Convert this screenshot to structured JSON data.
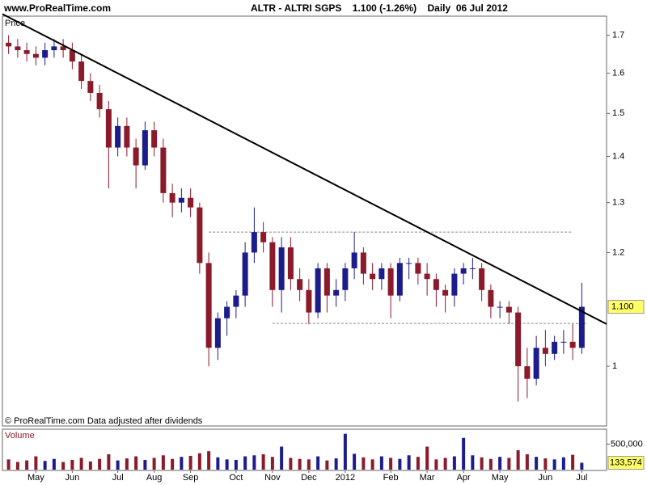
{
  "header": {
    "site": "www.ProRealTime.com",
    "instrument": "ALTR - ALTRI SGPS    1.100 (-1.26%)    Daily  06 Jul 2012"
  },
  "chart_data": {
    "type": "candlestick",
    "price_label": "Price",
    "footnote": "© ProRealTime.com  Data adjusted after dividends",
    "log_scale": true,
    "ylim": [
      0.911,
      1.753
    ],
    "yticks": [
      1,
      1.2,
      1.3,
      1.4,
      1.5,
      1.6,
      1.7
    ],
    "colors": {
      "up": "#1c1c8c",
      "down": "#8b1a2b",
      "trendline": "#000000",
      "level": "#888888"
    },
    "categories": [
      null,
      null,
      null,
      "May",
      null,
      null,
      null,
      "Jun",
      null,
      null,
      null,
      null,
      "Jul",
      null,
      null,
      null,
      "Aug",
      null,
      null,
      null,
      "Sep",
      null,
      null,
      null,
      null,
      "Oct",
      null,
      null,
      null,
      "Nov",
      null,
      null,
      null,
      "Dec",
      null,
      null,
      null,
      "2012",
      null,
      null,
      null,
      null,
      "Feb",
      null,
      null,
      null,
      "Mar",
      null,
      null,
      null,
      "Apr",
      null,
      null,
      null,
      "May",
      null,
      null,
      null,
      null,
      "Jun",
      null,
      null,
      null,
      "Jul"
    ],
    "open": [
      1.68,
      1.67,
      1.66,
      1.65,
      1.64,
      1.66,
      1.67,
      1.66,
      1.63,
      1.58,
      1.55,
      1.51,
      1.42,
      1.47,
      1.42,
      1.38,
      1.46,
      1.42,
      1.32,
      1.3,
      1.31,
      1.29,
      1.18,
      1.03,
      1.08,
      1.1,
      1.12,
      1.2,
      1.24,
      1.22,
      1.13,
      1.21,
      1.15,
      1.13,
      1.09,
      1.17,
      1.12,
      1.13,
      1.17,
      1.2,
      1.16,
      1.15,
      1.17,
      1.12,
      1.18,
      1.18,
      1.16,
      1.15,
      1.13,
      1.12,
      1.16,
      1.17,
      1.17,
      1.13,
      1.1,
      1.1,
      1.09,
      1.0,
      0.98,
      1.03,
      1.02,
      1.04,
      1.04,
      1.03
    ],
    "high": [
      1.7,
      1.69,
      1.68,
      1.67,
      1.68,
      1.69,
      1.69,
      1.68,
      1.65,
      1.6,
      1.57,
      1.53,
      1.49,
      1.49,
      1.44,
      1.48,
      1.48,
      1.44,
      1.34,
      1.33,
      1.33,
      1.3,
      1.2,
      1.09,
      1.11,
      1.13,
      1.22,
      1.29,
      1.26,
      1.23,
      1.23,
      1.23,
      1.17,
      1.15,
      1.18,
      1.18,
      1.15,
      1.18,
      1.24,
      1.21,
      1.18,
      1.18,
      1.18,
      1.19,
      1.19,
      1.19,
      1.18,
      1.16,
      1.14,
      1.17,
      1.18,
      1.19,
      1.18,
      1.14,
      1.11,
      1.11,
      1.1,
      1.03,
      1.05,
      1.06,
      1.05,
      1.06,
      1.07,
      1.143
    ],
    "low": [
      1.65,
      1.64,
      1.63,
      1.62,
      1.62,
      1.64,
      1.64,
      1.61,
      1.56,
      1.53,
      1.49,
      1.33,
      1.4,
      1.4,
      1.33,
      1.37,
      1.4,
      1.3,
      1.27,
      1.28,
      1.27,
      1.16,
      1.0,
      1.01,
      1.05,
      1.08,
      1.1,
      1.18,
      1.2,
      1.1,
      1.09,
      1.13,
      1.11,
      1.07,
      1.08,
      1.09,
      1.1,
      1.11,
      1.15,
      1.14,
      1.13,
      1.13,
      1.08,
      1.11,
      1.15,
      1.14,
      1.12,
      1.1,
      1.09,
      1.1,
      1.14,
      1.15,
      1.11,
      1.08,
      1.08,
      1.07,
      0.945,
      0.95,
      0.97,
      1.0,
      1.01,
      1.02,
      1.01,
      1.02
    ],
    "close": [
      1.67,
      1.66,
      1.65,
      1.64,
      1.66,
      1.67,
      1.66,
      1.63,
      1.58,
      1.55,
      1.51,
      1.42,
      1.47,
      1.42,
      1.38,
      1.46,
      1.42,
      1.32,
      1.3,
      1.31,
      1.29,
      1.18,
      1.03,
      1.08,
      1.1,
      1.12,
      1.2,
      1.24,
      1.22,
      1.13,
      1.21,
      1.15,
      1.13,
      1.09,
      1.17,
      1.12,
      1.13,
      1.17,
      1.2,
      1.16,
      1.15,
      1.17,
      1.12,
      1.18,
      1.18,
      1.16,
      1.15,
      1.13,
      1.12,
      1.16,
      1.17,
      1.17,
      1.13,
      1.1,
      1.1,
      1.09,
      1.0,
      0.98,
      1.03,
      1.02,
      1.04,
      1.04,
      1.03,
      1.1
    ],
    "last_price": {
      "value": 1.1,
      "label": "1.100"
    },
    "trendline": [
      1.75,
      1.092
    ],
    "levels": [
      1.24,
      1.071
    ],
    "volume": {
      "name": "Volume",
      "ylim": [
        0,
        774000
      ],
      "yticks": [
        {
          "value": 500000,
          "label": "500,000"
        }
      ],
      "values": [
        200000,
        150000,
        180000,
        260000,
        170000,
        210000,
        150000,
        190000,
        230000,
        160000,
        210000,
        300000,
        180000,
        220000,
        260000,
        190000,
        230000,
        280000,
        210000,
        250000,
        270000,
        320000,
        360000,
        240000,
        200000,
        190000,
        260000,
        280000,
        300000,
        250000,
        450000,
        230000,
        210000,
        200000,
        260000,
        180000,
        220000,
        700000,
        310000,
        240000,
        200000,
        260000,
        230000,
        210000,
        280000,
        250000,
        450000,
        200000,
        230000,
        260000,
        620000,
        280000,
        240000,
        210000,
        250000,
        230000,
        380000,
        300000,
        250000,
        220000,
        200000,
        240000,
        290000,
        133574
      ],
      "last_label": {
        "value": 133574,
        "label": "133,574"
      }
    }
  }
}
